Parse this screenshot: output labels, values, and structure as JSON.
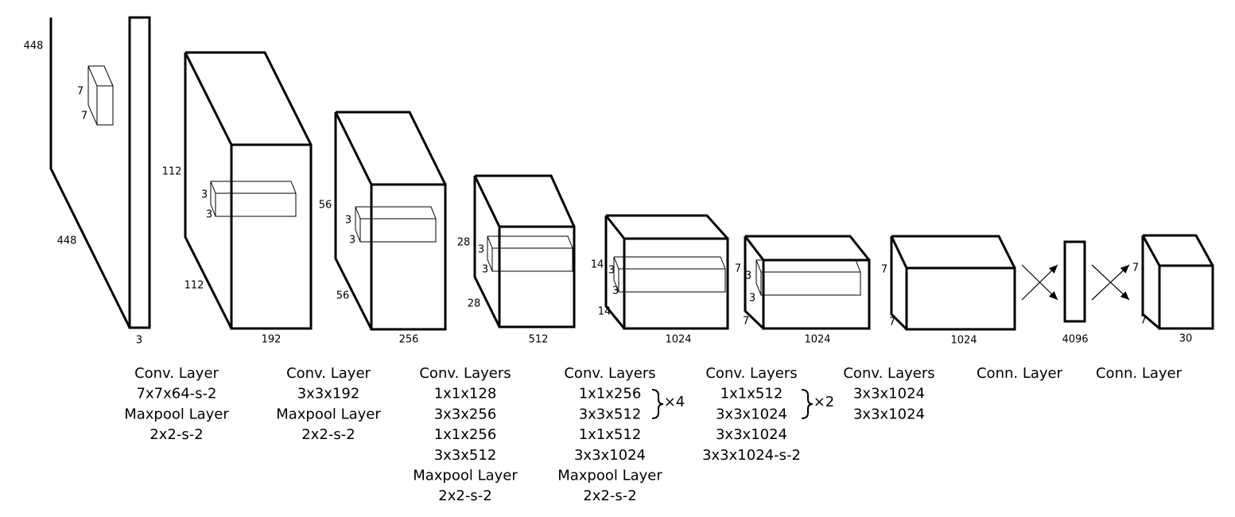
{
  "volumes": [
    {
      "dims": [
        "448",
        "448",
        "7",
        "7",
        "3"
      ]
    },
    {
      "dims": [
        "112",
        "112",
        "3",
        "3",
        "192"
      ]
    },
    {
      "dims": [
        "56",
        "56",
        "3",
        "3",
        "256"
      ]
    },
    {
      "dims": [
        "28",
        "28",
        "3",
        "3",
        "512"
      ]
    },
    {
      "dims": [
        "14",
        "14",
        "3",
        "3",
        "1024"
      ]
    },
    {
      "dims": [
        "7",
        "7",
        "3",
        "3",
        "1024"
      ]
    },
    {
      "dims": [
        "7",
        "7",
        "1024"
      ]
    },
    {
      "dims": [
        "4096"
      ]
    },
    {
      "dims": [
        "7",
        "7",
        "30"
      ]
    }
  ],
  "layers": [
    {
      "caption": [
        "Conv. Layer",
        "7x7x64-s-2",
        "Maxpool Layer",
        "2x2-s-2"
      ]
    },
    {
      "caption": [
        "Conv. Layer",
        "3x3x192",
        "Maxpool Layer",
        "2x2-s-2"
      ]
    },
    {
      "caption": [
        "Conv. Layers",
        "1x1x128",
        "3x3x256",
        "1x1x256",
        "3x3x512",
        "Maxpool Layer",
        "2x2-s-2"
      ]
    },
    {
      "caption": [
        "Conv. Layers",
        "1x1x256",
        "3x3x512",
        "1x1x512",
        "3x3x1024",
        "Maxpool Layer",
        "2x2-s-2"
      ],
      "repeat": "×4"
    },
    {
      "caption": [
        "Conv. Layers",
        "1x1x512",
        "3x3x1024",
        "3x3x1024",
        "3x3x1024-s-2"
      ],
      "repeat": "×2"
    },
    {
      "caption": [
        "Conv. Layers",
        "3x3x1024",
        "3x3x1024"
      ]
    },
    {
      "caption": [
        "Conn. Layer"
      ]
    },
    {
      "caption": [
        "Conn. Layer"
      ]
    }
  ]
}
